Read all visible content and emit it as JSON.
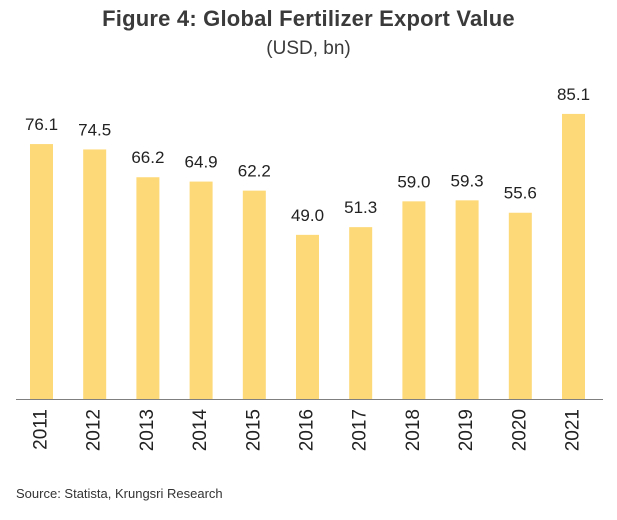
{
  "header": {
    "title": "Figure 4: Global  Fertilizer Export  Value",
    "subtitle": "(USD, bn)"
  },
  "footer": {
    "source": "Source: Statista, Krungsri Research"
  },
  "colors": {
    "bar": "#FDD978",
    "axis": "#7f7f7f",
    "label": "#222222"
  },
  "chart_data": {
    "type": "bar",
    "title": "Figure 4: Global  Fertilizer Export  Value",
    "subtitle": "(USD, bn)",
    "categories": [
      "2011",
      "2012",
      "2013",
      "2014",
      "2015",
      "2016",
      "2017",
      "2018",
      "2019",
      "2020",
      "2021"
    ],
    "values": [
      76.1,
      74.5,
      66.2,
      64.9,
      62.2,
      49.0,
      51.3,
      59.0,
      59.3,
      55.6,
      85.1
    ],
    "value_labels": [
      "76.1",
      "74.5",
      "66.2",
      "64.9",
      "62.2",
      "49.0",
      "51.3",
      "59.0",
      "59.3",
      "55.6",
      "85.1"
    ],
    "ylim": [
      0,
      100
    ],
    "grid": false,
    "legend": "none"
  }
}
